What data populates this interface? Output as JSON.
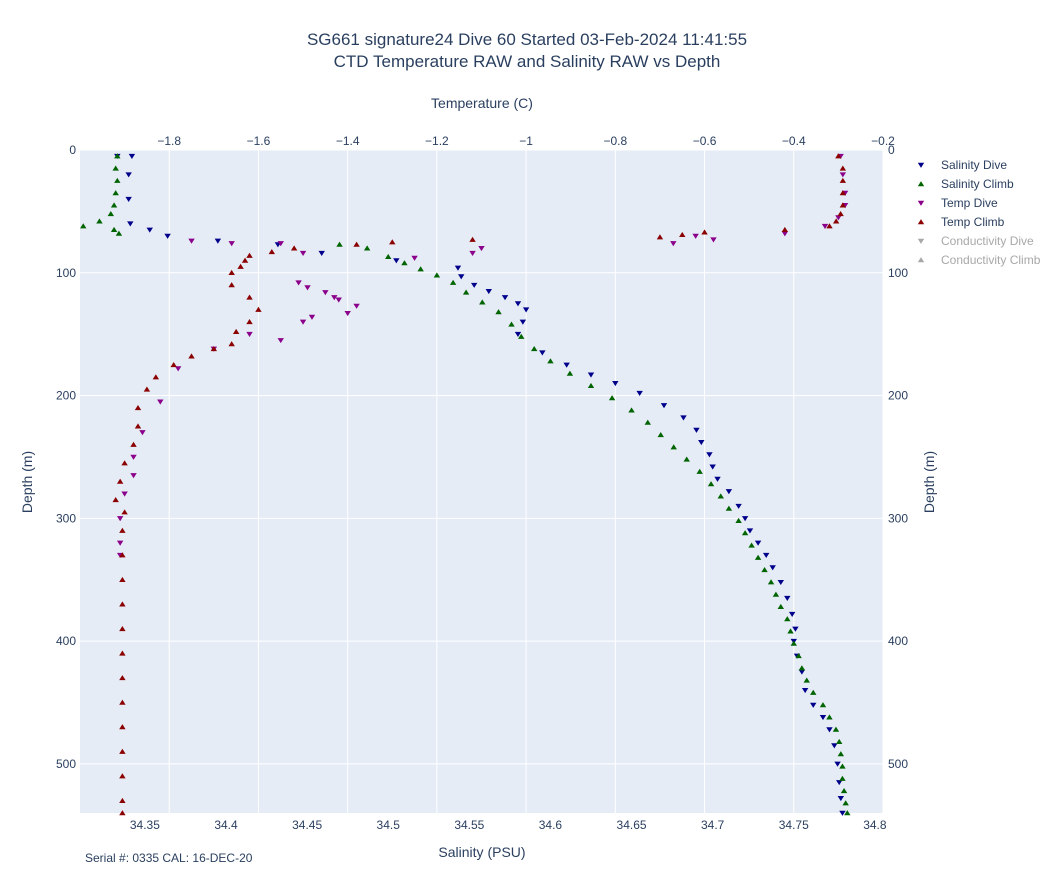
{
  "chart_data": {
    "type": "scatter",
    "title": "SG661 signature24 Dive 60 Started 03-Feb-2024 11:41:55",
    "subtitle": "CTD Temperature RAW and Salinity RAW vs Depth",
    "xlabel_bottom": "Salinity (PSU)",
    "xlabel_top": "Temperature (C)",
    "ylabel_left": "Depth (m)",
    "ylabel_right": "Depth (m)",
    "x_bottom_range": [
      34.31,
      34.805
    ],
    "x_bottom_ticks": [
      "34.35",
      "34.4",
      "34.45",
      "34.5",
      "34.55",
      "34.6",
      "34.65",
      "34.7",
      "34.75",
      "34.8"
    ],
    "x_top_range": [
      -2.0,
      -0.2
    ],
    "x_top_ticks": [
      "−1.8",
      "−1.6",
      "−1.4",
      "−1.2",
      "−1",
      "−0.8",
      "−0.6",
      "−0.4",
      "−0.2"
    ],
    "y_range": [
      0,
      540
    ],
    "y_ticks": [
      "0",
      "100",
      "200",
      "300",
      "400",
      "500"
    ],
    "y_reversed": true,
    "grid": true,
    "legend_position": "right",
    "series": [
      {
        "name": "Salinity Dive",
        "axis": "salinity",
        "marker": "triangle-down",
        "color": "#00008b",
        "visible": true,
        "points": [
          [
            34.333,
            5
          ],
          [
            34.342,
            5
          ],
          [
            34.34,
            20
          ],
          [
            34.34,
            40
          ],
          [
            34.341,
            60
          ],
          [
            34.353,
            65
          ],
          [
            34.364,
            70
          ],
          [
            34.395,
            74
          ],
          [
            34.432,
            77
          ],
          [
            34.459,
            84
          ],
          [
            34.505,
            90
          ],
          [
            34.543,
            96
          ],
          [
            34.545,
            103
          ],
          [
            34.553,
            110
          ],
          [
            34.562,
            115
          ],
          [
            34.572,
            120
          ],
          [
            34.58,
            125
          ],
          [
            34.585,
            130
          ],
          [
            34.583,
            140
          ],
          [
            34.58,
            150
          ],
          [
            34.595,
            165
          ],
          [
            34.61,
            175
          ],
          [
            34.625,
            183
          ],
          [
            34.64,
            190
          ],
          [
            34.655,
            198
          ],
          [
            34.67,
            208
          ],
          [
            34.682,
            218
          ],
          [
            34.69,
            228
          ],
          [
            34.693,
            238
          ],
          [
            34.698,
            248
          ],
          [
            34.7,
            258
          ],
          [
            34.703,
            268
          ],
          [
            34.71,
            278
          ],
          [
            34.716,
            290
          ],
          [
            34.72,
            300
          ],
          [
            34.723,
            310
          ],
          [
            34.728,
            320
          ],
          [
            34.733,
            330
          ],
          [
            34.737,
            340
          ],
          [
            34.742,
            352
          ],
          [
            34.746,
            365
          ],
          [
            34.749,
            378
          ],
          [
            34.751,
            390
          ],
          [
            34.75,
            400
          ],
          [
            34.752,
            412
          ],
          [
            34.755,
            425
          ],
          [
            34.757,
            440
          ],
          [
            34.762,
            452
          ],
          [
            34.768,
            462
          ],
          [
            34.772,
            472
          ],
          [
            34.775,
            485
          ],
          [
            34.777,
            500
          ],
          [
            34.778,
            515
          ],
          [
            34.779,
            528
          ],
          [
            34.78,
            540
          ]
        ]
      },
      {
        "name": "Salinity Climb",
        "axis": "salinity",
        "marker": "triangle-up",
        "color": "#006400",
        "visible": true,
        "points": [
          [
            34.333,
            5
          ],
          [
            34.332,
            15
          ],
          [
            34.333,
            25
          ],
          [
            34.332,
            35
          ],
          [
            34.331,
            45
          ],
          [
            34.329,
            52
          ],
          [
            34.322,
            58
          ],
          [
            34.312,
            62
          ],
          [
            34.331,
            65
          ],
          [
            34.334,
            68
          ],
          [
            34.47,
            77
          ],
          [
            34.487,
            80
          ],
          [
            34.5,
            87
          ],
          [
            34.51,
            92
          ],
          [
            34.52,
            97
          ],
          [
            34.53,
            102
          ],
          [
            34.54,
            108
          ],
          [
            34.548,
            116
          ],
          [
            34.558,
            124
          ],
          [
            34.568,
            132
          ],
          [
            34.576,
            142
          ],
          [
            34.582,
            152
          ],
          [
            34.59,
            162
          ],
          [
            34.6,
            172
          ],
          [
            34.612,
            182
          ],
          [
            34.625,
            192
          ],
          [
            34.638,
            202
          ],
          [
            34.65,
            212
          ],
          [
            34.66,
            222
          ],
          [
            34.668,
            232
          ],
          [
            34.676,
            242
          ],
          [
            34.684,
            252
          ],
          [
            34.692,
            262
          ],
          [
            34.699,
            272
          ],
          [
            34.705,
            282
          ],
          [
            34.71,
            292
          ],
          [
            34.716,
            302
          ],
          [
            34.72,
            312
          ],
          [
            34.724,
            322
          ],
          [
            34.728,
            332
          ],
          [
            34.732,
            342
          ],
          [
            34.736,
            352
          ],
          [
            34.739,
            362
          ],
          [
            34.742,
            372
          ],
          [
            34.746,
            382
          ],
          [
            34.748,
            392
          ],
          [
            34.75,
            402
          ],
          [
            34.753,
            412
          ],
          [
            34.755,
            422
          ],
          [
            34.758,
            432
          ],
          [
            34.762,
            442
          ],
          [
            34.768,
            452
          ],
          [
            34.772,
            462
          ],
          [
            34.776,
            472
          ],
          [
            34.778,
            482
          ],
          [
            34.779,
            492
          ],
          [
            34.78,
            502
          ],
          [
            34.78,
            512
          ],
          [
            34.781,
            522
          ],
          [
            34.782,
            532
          ],
          [
            34.783,
            540
          ]
        ]
      },
      {
        "name": "Temp Dive",
        "axis": "temperature",
        "marker": "triangle-down",
        "color": "#8b008b",
        "visible": true,
        "points": [
          [
            -0.295,
            5
          ],
          [
            -0.29,
            20
          ],
          [
            -0.285,
            35
          ],
          [
            -0.285,
            45
          ],
          [
            -0.3,
            55
          ],
          [
            -0.33,
            62
          ],
          [
            -0.42,
            68
          ],
          [
            -0.62,
            70
          ],
          [
            -0.58,
            73
          ],
          [
            -0.67,
            76
          ],
          [
            -1.1,
            80
          ],
          [
            -1.12,
            84
          ],
          [
            -1.25,
            88
          ],
          [
            -1.5,
            84
          ],
          [
            -1.55,
            76
          ],
          [
            -1.66,
            76
          ],
          [
            -1.75,
            74
          ],
          [
            -1.51,
            108
          ],
          [
            -1.49,
            112
          ],
          [
            -1.45,
            116
          ],
          [
            -1.42,
            122
          ],
          [
            -1.38,
            127
          ],
          [
            -1.4,
            133
          ],
          [
            -1.48,
            136
          ],
          [
            -1.43,
            120
          ],
          [
            -1.5,
            140
          ],
          [
            -1.55,
            155
          ],
          [
            -1.62,
            150
          ],
          [
            -1.7,
            162
          ],
          [
            -1.78,
            178
          ],
          [
            -1.82,
            205
          ],
          [
            -1.86,
            230
          ],
          [
            -1.88,
            250
          ],
          [
            -1.88,
            265
          ],
          [
            -1.9,
            280
          ],
          [
            -1.91,
            300
          ],
          [
            -1.91,
            320
          ],
          [
            -1.91,
            330
          ]
        ]
      },
      {
        "name": "Temp Climb",
        "axis": "temperature",
        "marker": "triangle-up",
        "color": "#8b0000",
        "visible": true,
        "points": [
          [
            -0.3,
            5
          ],
          [
            -0.29,
            15
          ],
          [
            -0.29,
            25
          ],
          [
            -0.29,
            35
          ],
          [
            -0.29,
            45
          ],
          [
            -0.295,
            52
          ],
          [
            -0.305,
            58
          ],
          [
            -0.32,
            62
          ],
          [
            -0.42,
            65
          ],
          [
            -0.6,
            67
          ],
          [
            -0.65,
            69
          ],
          [
            -0.7,
            71
          ],
          [
            -1.12,
            73
          ],
          [
            -1.3,
            75
          ],
          [
            -1.38,
            77
          ],
          [
            -1.52,
            80
          ],
          [
            -1.57,
            83
          ],
          [
            -1.62,
            86
          ],
          [
            -1.63,
            90
          ],
          [
            -1.64,
            95
          ],
          [
            -1.66,
            100
          ],
          [
            -1.66,
            110
          ],
          [
            -1.62,
            120
          ],
          [
            -1.6,
            130
          ],
          [
            -1.62,
            140
          ],
          [
            -1.65,
            148
          ],
          [
            -1.66,
            158
          ],
          [
            -1.7,
            162
          ],
          [
            -1.75,
            168
          ],
          [
            -1.79,
            175
          ],
          [
            -1.83,
            185
          ],
          [
            -1.85,
            195
          ],
          [
            -1.87,
            210
          ],
          [
            -1.87,
            225
          ],
          [
            -1.88,
            240
          ],
          [
            -1.9,
            255
          ],
          [
            -1.91,
            270
          ],
          [
            -1.92,
            285
          ],
          [
            -1.9,
            295
          ],
          [
            -1.905,
            310
          ],
          [
            -1.905,
            330
          ],
          [
            -1.905,
            350
          ],
          [
            -1.905,
            370
          ],
          [
            -1.905,
            390
          ],
          [
            -1.905,
            410
          ],
          [
            -1.905,
            430
          ],
          [
            -1.905,
            450
          ],
          [
            -1.905,
            470
          ],
          [
            -1.905,
            490
          ],
          [
            -1.905,
            510
          ],
          [
            -1.905,
            530
          ],
          [
            -1.905,
            540
          ]
        ]
      },
      {
        "name": "Conductivity Dive",
        "axis": "none",
        "marker": "triangle-down",
        "color": "#a8a8a8",
        "visible": false,
        "points": []
      },
      {
        "name": "Conductivity Climb",
        "axis": "none",
        "marker": "triangle-up",
        "color": "#a8a8a8",
        "visible": false,
        "points": []
      }
    ],
    "footnote": "Serial #: 0335  CAL: 16-DEC-20"
  }
}
